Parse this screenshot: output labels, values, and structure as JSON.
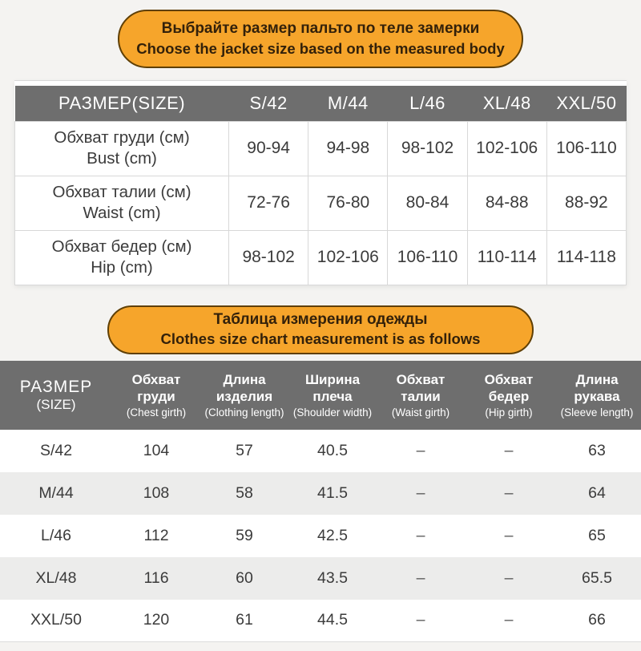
{
  "colors": {
    "accent_orange": "#f6a52b",
    "banner_border": "#5f3f05",
    "header_grey": "#6e6e6e",
    "page_bg": "#f4f3f1",
    "zebra_row": "#ececeb"
  },
  "banner_top": {
    "line_ru": "Выбрайте размер пальто по теле замерки",
    "line_en": "Choose the jacket size based on the measured body"
  },
  "banner_mid": {
    "line_ru": "Таблица измерения одежды",
    "line_en": "Clothes size chart measurement is as follows"
  },
  "body_table": {
    "header": {
      "label": "РАЗМЕР(SIZE)",
      "sizes": [
        "S/42",
        "M/44",
        "L/46",
        "XL/48",
        "XXL/50"
      ]
    },
    "rows": [
      {
        "label_ru": "Обхват груди (см)",
        "label_en": "Bust (cm)",
        "values": [
          "90-94",
          "94-98",
          "98-102",
          "102-106",
          "106-110"
        ]
      },
      {
        "label_ru": "Обхват талии (см)",
        "label_en": "Waist (cm)",
        "values": [
          "72-76",
          "76-80",
          "80-84",
          "84-88",
          "88-92"
        ]
      },
      {
        "label_ru": "Обхват бедер (см)",
        "label_en": "Hip (cm)",
        "values": [
          "98-102",
          "102-106",
          "106-110",
          "110-114",
          "114-118"
        ]
      }
    ]
  },
  "garment_table": {
    "header": {
      "size_ru": "РАЗМЕР",
      "size_en": "(SIZE)",
      "columns": [
        {
          "ru": "Обхват груди",
          "en": "(Chest girth)"
        },
        {
          "ru": "Длина изделия",
          "en": "(Clothing length)"
        },
        {
          "ru": "Ширина плеча",
          "en": "(Shoulder width)"
        },
        {
          "ru": "Обхват талии",
          "en": "(Waist girth)"
        },
        {
          "ru": "Обхват бедер",
          "en": "(Hip girth)"
        },
        {
          "ru": "Длина рукава",
          "en": "(Sleeve length)"
        }
      ]
    },
    "rows": [
      {
        "size": "S/42",
        "values": [
          "104",
          "57",
          "40.5",
          "–",
          "–",
          "63"
        ]
      },
      {
        "size": "M/44",
        "values": [
          "108",
          "58",
          "41.5",
          "–",
          "–",
          "64"
        ]
      },
      {
        "size": "L/46",
        "values": [
          "112",
          "59",
          "42.5",
          "–",
          "–",
          "65"
        ]
      },
      {
        "size": "XL/48",
        "values": [
          "116",
          "60",
          "43.5",
          "–",
          "–",
          "65.5"
        ]
      },
      {
        "size": "XXL/50",
        "values": [
          "120",
          "61",
          "44.5",
          "–",
          "–",
          "66"
        ]
      }
    ]
  }
}
